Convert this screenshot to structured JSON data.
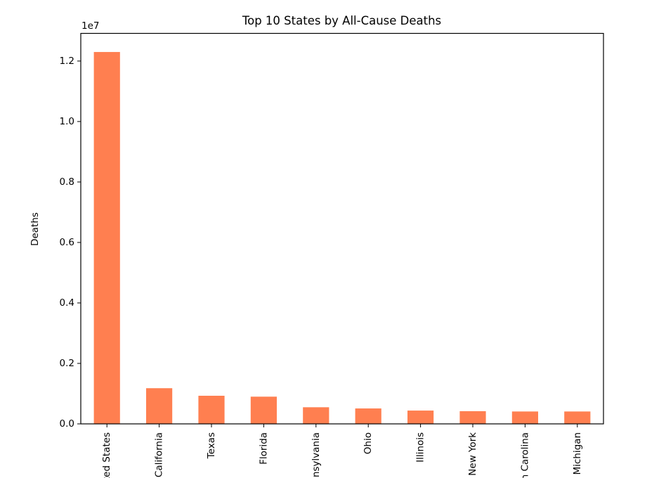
{
  "chart_data": {
    "type": "bar",
    "title": "Top 10 States by All-Cause Deaths",
    "xlabel": "",
    "ylabel": "Deaths",
    "offset_label": "1e7",
    "categories": [
      "United States",
      "California",
      "Texas",
      "Florida",
      "Pennsylvania",
      "Ohio",
      "Illinois",
      "New York",
      "North Carolina",
      "Michigan"
    ],
    "values": [
      12300000,
      1180000,
      930000,
      900000,
      550000,
      510000,
      440000,
      420000,
      410000,
      410000
    ],
    "ylim": [
      0,
      12915000
    ],
    "yticks": [
      0.0,
      0.2,
      0.4,
      0.6,
      0.8,
      1.0,
      1.2
    ],
    "ytick_labels": [
      "0.0",
      "0.2",
      "0.4",
      "0.6",
      "0.8",
      "1.0",
      "1.2"
    ],
    "ytick_scale": 10000000,
    "grid": false,
    "legend": "none",
    "bar_color": "#FF7F50"
  }
}
